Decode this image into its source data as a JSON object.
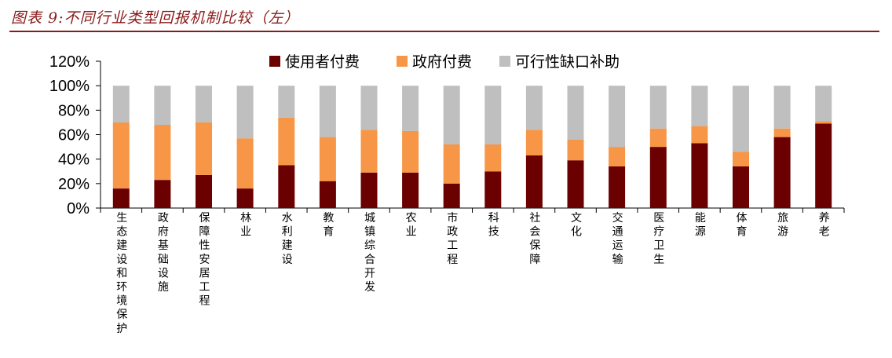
{
  "figure_title": "图表 9:不同行业类型回报机制比较（左）",
  "colors": {
    "user": "#6b0000",
    "gov": "#f79646",
    "gap": "#bfbfbf",
    "accent": "#8b1a1a"
  },
  "chart_data": {
    "type": "bar",
    "stacked": true,
    "title": "",
    "xlabel": "",
    "ylabel": "",
    "ylim": [
      0,
      120
    ],
    "yticks": [
      0,
      20,
      40,
      60,
      80,
      100,
      120
    ],
    "ytick_labels": [
      "0%",
      "20%",
      "40%",
      "60%",
      "80%",
      "100%",
      "120%"
    ],
    "grid": false,
    "legend_position": "top",
    "categories": [
      "生态建设和环境保护",
      "政府基础设施",
      "保障性安居工程",
      "林业",
      "水利建设",
      "教育",
      "城镇综合开发",
      "农业",
      "市政工程",
      "科技",
      "社会保障",
      "文化",
      "交通运输",
      "医疗卫生",
      "能源",
      "体育",
      "旅游",
      "养老"
    ],
    "series": [
      {
        "name": "使用者付费",
        "values": [
          16,
          23,
          27,
          16,
          35,
          22,
          29,
          29,
          20,
          30,
          43,
          39,
          34,
          50,
          53,
          34,
          58,
          69
        ]
      },
      {
        "name": "政府付费",
        "values": [
          54,
          45,
          43,
          41,
          39,
          36,
          35,
          34,
          32,
          22,
          21,
          17,
          16,
          15,
          14,
          12,
          7,
          2
        ]
      },
      {
        "name": "可行性缺口补助",
        "values": [
          30,
          32,
          30,
          43,
          26,
          42,
          36,
          37,
          48,
          48,
          36,
          44,
          50,
          35,
          33,
          54,
          35,
          29
        ]
      }
    ]
  }
}
